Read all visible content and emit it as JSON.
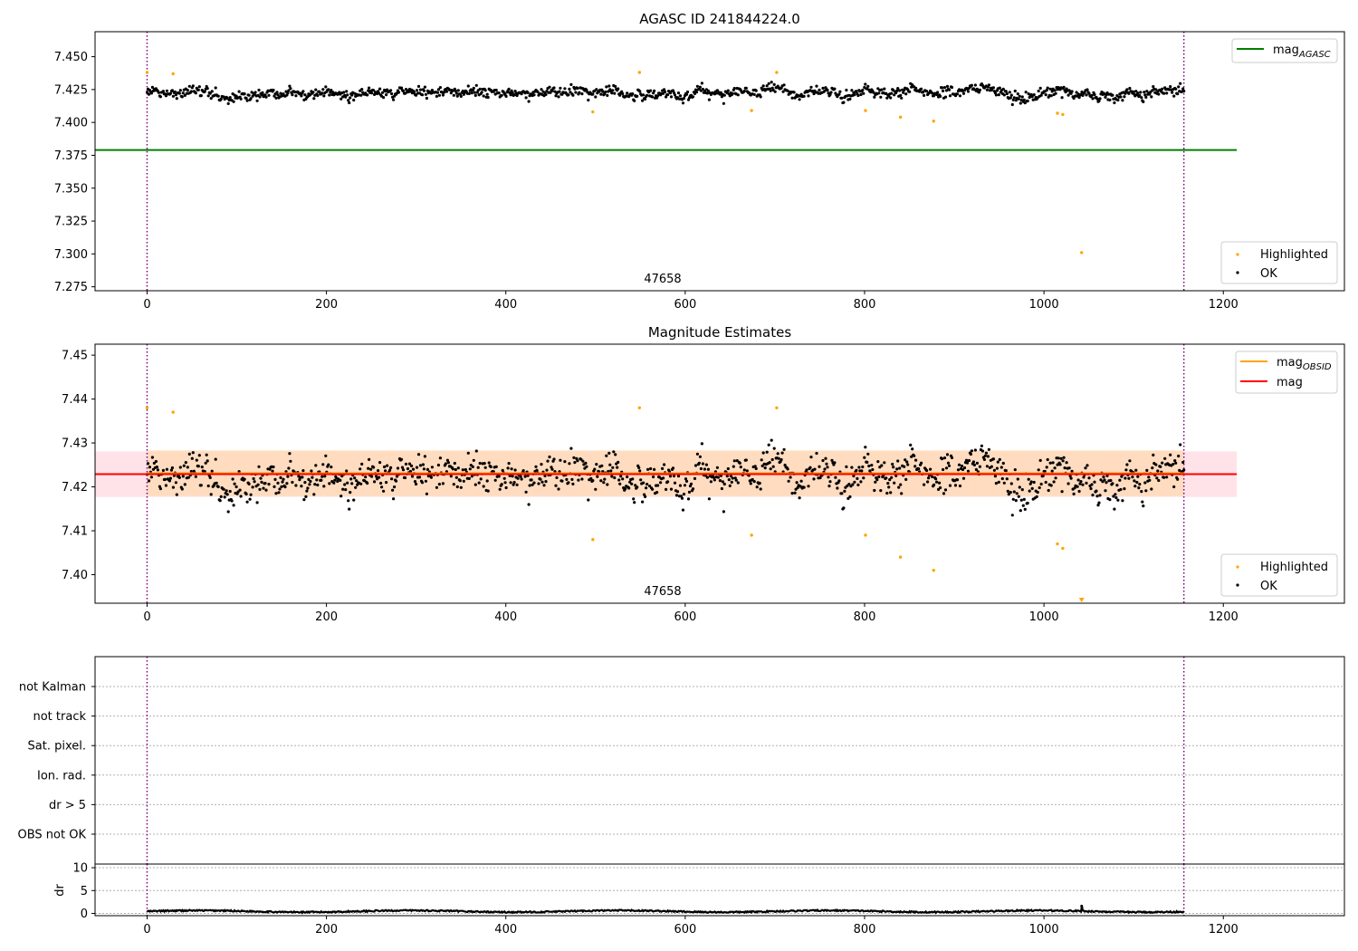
{
  "figure_title": "AGASC ID 241844224.0",
  "colors": {
    "ok": "#000000",
    "highlighted": "#ffa500",
    "agasc_line": "#008000",
    "mag_line": "#ff0000",
    "obsid_line": "#ffa500",
    "obsid_band": "#ffdab9",
    "mag_band": "#ffc0cb",
    "obs_boundary": "#800080"
  },
  "chart_data": [
    {
      "type": "scatter",
      "title": "AGASC ID 241844224.0",
      "xlim": [
        -58,
        1335
      ],
      "ylim": [
        7.272,
        7.469
      ],
      "xticks": [
        0,
        200,
        400,
        600,
        800,
        1000,
        1200
      ],
      "yticks": [
        7.275,
        7.3,
        7.325,
        7.35,
        7.375,
        7.4,
        7.425,
        7.45
      ],
      "ytick_labels": [
        "7.275",
        "7.300",
        "7.325",
        "7.350",
        "7.375",
        "7.400",
        "7.425",
        "7.450"
      ],
      "obs_boundaries": [
        0,
        1156
      ],
      "obsid_label": {
        "text": "47658",
        "x": 578
      },
      "mag_agasc": {
        "value": 7.379,
        "x_range": [
          -58,
          1215
        ]
      },
      "ok_points": {
        "n": 1150,
        "x_range": [
          0,
          1156
        ],
        "center": 7.423,
        "noise": 0.0048,
        "min": 7.41,
        "max": 7.437
      },
      "highlighted_points": [
        {
          "x": 0,
          "y": 7.438
        },
        {
          "x": 29,
          "y": 7.437
        },
        {
          "x": 497,
          "y": 7.408
        },
        {
          "x": 549,
          "y": 7.438
        },
        {
          "x": 674,
          "y": 7.409
        },
        {
          "x": 702,
          "y": 7.438
        },
        {
          "x": 801,
          "y": 7.409
        },
        {
          "x": 840,
          "y": 7.404
        },
        {
          "x": 877,
          "y": 7.401
        },
        {
          "x": 1015,
          "y": 7.407
        },
        {
          "x": 1021,
          "y": 7.406
        },
        {
          "x": 1042,
          "y": 7.301
        }
      ],
      "legend_top": {
        "placement": "top-right",
        "entries": [
          {
            "label": "mag",
            "sub": "AGASC",
            "color": "#008000"
          }
        ]
      },
      "legend_bottom": {
        "placement": "bottom-right",
        "entries": [
          {
            "label": "Highlighted",
            "color": "#ffa500"
          },
          {
            "label": "OK",
            "color": "#000000"
          }
        ]
      }
    },
    {
      "type": "scatter",
      "title": "Magnitude Estimates",
      "xlim": [
        -58,
        1335
      ],
      "ylim": [
        7.3935,
        7.4525
      ],
      "xticks": [
        0,
        200,
        400,
        600,
        800,
        1000,
        1200
      ],
      "yticks": [
        7.4,
        7.41,
        7.42,
        7.43,
        7.44,
        7.45
      ],
      "ytick_labels": [
        "7.40",
        "7.41",
        "7.42",
        "7.43",
        "7.44",
        "7.45"
      ],
      "obs_boundaries": [
        0,
        1156
      ],
      "obsid_label": {
        "text": "47658",
        "x": 578
      },
      "mag": {
        "value": 7.4229,
        "band": [
          7.4177,
          7.4281
        ],
        "x_range": [
          -58,
          1215
        ]
      },
      "mag_obsid": {
        "value": 7.4231,
        "band": [
          7.4179,
          7.4283
        ],
        "x_range": [
          0,
          1156
        ]
      },
      "ok_points": {
        "n": 1150,
        "x_range": [
          0,
          1156
        ],
        "center": 7.423,
        "noise": 0.0048,
        "min": 7.41,
        "max": 7.437
      },
      "highlighted_points": [
        {
          "x": 0,
          "y": 7.438
        },
        {
          "x": 29,
          "y": 7.437
        },
        {
          "x": 497,
          "y": 7.408
        },
        {
          "x": 549,
          "y": 7.438
        },
        {
          "x": 674,
          "y": 7.409
        },
        {
          "x": 702,
          "y": 7.438
        },
        {
          "x": 801,
          "y": 7.409
        },
        {
          "x": 840,
          "y": 7.404
        },
        {
          "x": 877,
          "y": 7.401
        },
        {
          "x": 1015,
          "y": 7.407
        },
        {
          "x": 1021,
          "y": 7.406
        }
      ],
      "clipped_points": [
        {
          "x": 1042,
          "direction": "below"
        }
      ],
      "legend_top": {
        "placement": "top-right",
        "entries": [
          {
            "label": "mag",
            "sub": "OBSID",
            "color": "#ffa500"
          },
          {
            "label": "mag",
            "color": "#ff0000"
          }
        ]
      },
      "legend_bottom": {
        "placement": "bottom-right",
        "entries": [
          {
            "label": "Highlighted",
            "color": "#ffa500"
          },
          {
            "label": "OK",
            "color": "#000000"
          }
        ]
      }
    },
    {
      "type": "scatter",
      "title": "",
      "xlim": [
        -58,
        1335
      ],
      "categories": [
        "not Kalman",
        "not track",
        "Sat. pixel.",
        "Ion. rad.",
        "dr > 5",
        "OBS not OK"
      ],
      "obs_boundaries": [
        0,
        1156
      ],
      "grid": "horizontal dotted",
      "flagged_points": []
    },
    {
      "type": "line",
      "title": "",
      "ylabel": "dr",
      "xlim": [
        -58,
        1335
      ],
      "ylim": [
        -0.5,
        10.8
      ],
      "xticks": [
        0,
        200,
        400,
        600,
        800,
        1000,
        1200
      ],
      "yticks": [
        0,
        5,
        10
      ],
      "ytick_labels": [
        "0",
        "5",
        "10"
      ],
      "obs_boundaries": [
        0,
        1156
      ],
      "dr": {
        "n": 1150,
        "x_range": [
          0,
          1156
        ],
        "base": 0.45,
        "amp": 0.3,
        "spikes": [
          {
            "x": 1042,
            "y": 1.6
          }
        ]
      }
    }
  ]
}
